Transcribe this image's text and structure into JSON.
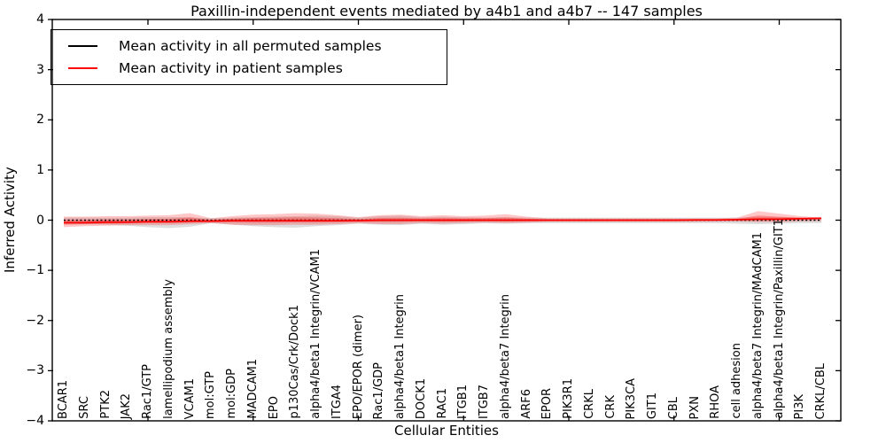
{
  "title": "Paxillin-independent events mediated by a4b1 and a4b7 -- 147 samples",
  "axes": {
    "ylabel": "Inferred Activity",
    "xlabel": "Cellular Entities"
  },
  "legend": {
    "entries": [
      {
        "label": "Mean activity in all permuted samples",
        "color": "#000000"
      },
      {
        "label": "Mean activity in patient samples",
        "color": "#ff0000"
      }
    ]
  },
  "colors": {
    "patient_line": "#ff0000",
    "permuted_line": "#000000",
    "patient_band": "rgba(255,0,0,0.22)",
    "patient_band_inner": "rgba(255,0,0,0.30)",
    "permuted_band": "rgba(0,0,0,0.13)",
    "axis": "#000000"
  },
  "chart_data": {
    "type": "line",
    "title": "Paxillin-independent events mediated by a4b1 and a4b7 -- 147 samples",
    "xlabel": "Cellular Entities",
    "ylabel": "Inferred Activity",
    "ylim": [
      -4,
      4
    ],
    "ytick_values": [
      4,
      3,
      2,
      1,
      0,
      -1,
      -2,
      -3,
      -4
    ],
    "ytick_labels": [
      "4",
      "3",
      "2",
      "1",
      "0",
      "−1",
      "−2",
      "−3",
      "−4"
    ],
    "grid": false,
    "legend_position": "upper left",
    "top_tick_every": 5,
    "inner_band_fraction": 0.45,
    "categories": [
      "BCAR1",
      "SRC",
      "PTK2",
      "JAK2",
      "Rac1/GTP",
      "lamellipodium assembly",
      "VCAM1",
      "mol:GTP",
      "mol:GDP",
      "MADCAM1",
      "EPO",
      "p130Cas/Crk/Dock1",
      "alpha4/beta1 Integrin/VCAM1",
      "ITGA4",
      "EPO/EPOR (dimer)",
      "Rac1/GDP",
      "alpha4/beta1 Integrin",
      "DOCK1",
      "RAC1",
      "ITGB1",
      "ITGB7",
      "alpha4/beta7 Integrin",
      "ARF6",
      "EPOR",
      "PIK3R1",
      "CRKL",
      "CRK",
      "PIK3CA",
      "GIT1",
      "CBL",
      "PXN",
      "RHOA",
      "cell adhesion",
      "alpha4/beta7 Integrin/MAdCAM1",
      "alpha4/beta1 Integrin/Paxillin/GIT1",
      "PI3K",
      "CRKL/CBL"
    ],
    "series": [
      {
        "name": "Mean activity in all permuted samples",
        "style": "dotted",
        "values": [
          0,
          0,
          0,
          0,
          0,
          0,
          0,
          0,
          0,
          0,
          0,
          0,
          0,
          0,
          0,
          0,
          0,
          0,
          0,
          0,
          0,
          0,
          0,
          0,
          0,
          0,
          0,
          0,
          0,
          0,
          0,
          0,
          0,
          0,
          0,
          0,
          0
        ],
        "band_hi": [
          0.05,
          0.05,
          0.05,
          0.05,
          0.06,
          0.06,
          0.06,
          0.035,
          0.05,
          0.06,
          0.07,
          0.08,
          0.09,
          0.08,
          0.05,
          0.08,
          0.09,
          0.06,
          0.07,
          0.06,
          0.05,
          0.06,
          0.05,
          0.05,
          0.05,
          0.05,
          0.05,
          0.05,
          0.05,
          0.05,
          0.05,
          0.05,
          0.05,
          0.06,
          0.06,
          0.05,
          0.05
        ],
        "band_lo": [
          -0.08,
          -0.08,
          -0.09,
          -0.11,
          -0.14,
          -0.16,
          -0.13,
          -0.06,
          -0.09,
          -0.12,
          -0.14,
          -0.15,
          -0.12,
          -0.1,
          -0.07,
          -0.09,
          -0.1,
          -0.07,
          -0.09,
          -0.08,
          -0.06,
          -0.07,
          -0.06,
          -0.06,
          -0.06,
          -0.06,
          -0.06,
          -0.06,
          -0.06,
          -0.06,
          -0.06,
          -0.06,
          -0.07,
          -0.08,
          -0.07,
          -0.06,
          -0.06
        ]
      },
      {
        "name": "Mean activity in patient samples",
        "style": "solid",
        "values": [
          -0.05,
          -0.05,
          -0.04,
          -0.04,
          -0.03,
          -0.03,
          -0.02,
          -0.02,
          -0.01,
          -0.01,
          -0.01,
          -0.01,
          -0.01,
          -0.01,
          -0.01,
          0,
          0,
          0,
          0,
          0,
          0,
          0,
          0,
          0,
          0,
          0,
          0,
          0,
          0,
          0,
          0.005,
          0.005,
          0.01,
          0.02,
          0.02,
          0.03,
          0.04
        ],
        "band_hi": [
          0.07,
          0.07,
          0.08,
          0.08,
          0.09,
          0.1,
          0.14,
          0.04,
          0.08,
          0.11,
          0.12,
          0.14,
          0.13,
          0.1,
          0.06,
          0.1,
          0.11,
          0.08,
          0.1,
          0.08,
          0.09,
          0.12,
          0.07,
          0.035,
          0.035,
          0.035,
          0.035,
          0.035,
          0.035,
          0.035,
          0.035,
          0.035,
          0.05,
          0.18,
          0.13,
          0.08,
          0.05
        ],
        "band_lo": [
          -0.14,
          -0.12,
          -0.11,
          -0.1,
          -0.1,
          -0.1,
          -0.08,
          -0.06,
          -0.09,
          -0.1,
          -0.1,
          -0.09,
          -0.09,
          -0.08,
          -0.06,
          -0.08,
          -0.08,
          -0.06,
          -0.07,
          -0.06,
          -0.05,
          -0.06,
          -0.05,
          -0.035,
          -0.035,
          -0.035,
          -0.035,
          -0.035,
          -0.035,
          -0.035,
          -0.035,
          -0.03,
          -0.03,
          -0.04,
          -0.04,
          -0.025,
          -0.02
        ]
      }
    ]
  }
}
